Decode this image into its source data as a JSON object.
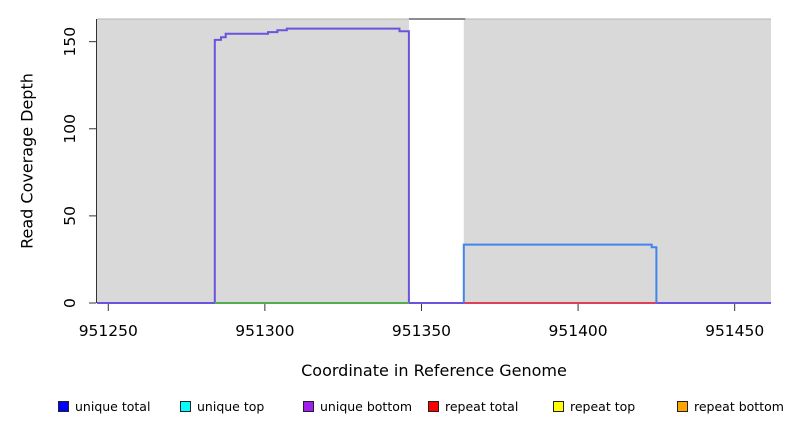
{
  "chart_data": {
    "type": "line",
    "title": "",
    "xlabel": "Coordinate in Reference Genome",
    "ylabel": "Read Coverage Depth",
    "xlim": [
      951246.4,
      951461.6
    ],
    "ylim": [
      0,
      163
    ],
    "x_ticks": [
      951250,
      951300,
      951350,
      951400,
      951450
    ],
    "y_ticks": [
      0,
      50,
      100,
      150
    ],
    "grid": false,
    "legend_position": "bottom",
    "background_color": "#ffffff",
    "region_fill_color": "#d9d9d9",
    "axis_color": "#333333",
    "top_border_color": "#b5b5b5",
    "shaded_regions": [
      {
        "name": "coverage-block-1",
        "x0": 951246.4,
        "x1": 951346
      },
      {
        "name": "coverage-block-2",
        "x0": 951363.5,
        "x1": 951461.6
      }
    ],
    "gap_region": {
      "x0": 951346,
      "x1": 951364,
      "top_line_color": "#8c8c8c"
    },
    "series": [
      {
        "key": "unique-bottom",
        "label": "unique bottom (overlapping unique total)",
        "color": "#6b53dd",
        "points": [
          [
            951246.4,
            0
          ],
          [
            951284,
            0
          ],
          [
            951284,
            151
          ],
          [
            951286,
            151
          ],
          [
            951286,
            152.5
          ],
          [
            951287.5,
            152.5
          ],
          [
            951287.5,
            154.5
          ],
          [
            951301,
            154.5
          ],
          [
            951301,
            155.5
          ],
          [
            951304,
            155.5
          ],
          [
            951304,
            156.5
          ],
          [
            951307,
            156.5
          ],
          [
            951307,
            157.5
          ],
          [
            951343,
            157.5
          ],
          [
            951343,
            156
          ],
          [
            951346,
            156
          ],
          [
            951346,
            0
          ],
          [
            951461.6,
            0
          ]
        ]
      },
      {
        "key": "zero-baseline-green",
        "label": "zero baseline under unique-bottom peak",
        "color": "#55ab55",
        "points": [
          [
            951284,
            0
          ],
          [
            951346,
            0
          ]
        ]
      },
      {
        "key": "repeat-total-baseline",
        "label": "repeat total zero baseline",
        "color": "#dd4158",
        "points": [
          [
            951363.5,
            0
          ],
          [
            951425,
            0
          ]
        ]
      },
      {
        "key": "unique-total-top",
        "label": "unique total (overlapping unique top)",
        "color": "#4284ec",
        "points": [
          [
            951363.5,
            0
          ],
          [
            951363.5,
            33.5
          ],
          [
            951423.5,
            33.5
          ],
          [
            951423.5,
            32
          ],
          [
            951425,
            32
          ],
          [
            951425,
            0
          ]
        ]
      }
    ],
    "legend": {
      "items": [
        {
          "key": "unique-total",
          "label": "unique total",
          "color": "#0000ff"
        },
        {
          "key": "unique-top",
          "label": "unique top",
          "color": "#00ffff"
        },
        {
          "key": "unique-bottom",
          "label": "unique bottom",
          "color": "#a020f0"
        },
        {
          "key": "repeat-total",
          "label": "repeat total",
          "color": "#ff0000"
        },
        {
          "key": "repeat-top",
          "label": "repeat top",
          "color": "#ffff00"
        },
        {
          "key": "repeat-bottom",
          "label": "repeat bottom",
          "color": "#ffa500"
        }
      ]
    }
  }
}
